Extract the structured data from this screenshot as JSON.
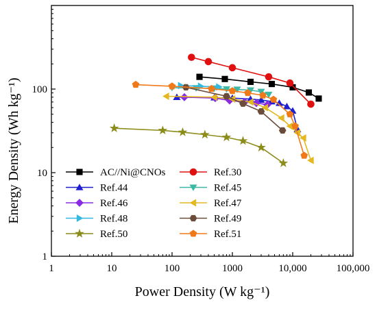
{
  "chart_data": {
    "type": "line",
    "xlabel": "Power Density (W kg⁻¹)",
    "ylabel": "Energy Density (Wh kg⁻¹)",
    "xscale": "log",
    "yscale": "log",
    "xlim": [
      1,
      100000
    ],
    "ylim": [
      1,
      1000
    ],
    "x_ticks": [
      {
        "value": 1,
        "label": "1"
      },
      {
        "value": 10,
        "label": "10"
      },
      {
        "value": 100,
        "label": "100"
      },
      {
        "value": 1000,
        "label": "1000"
      },
      {
        "value": 10000,
        "label": "10,000"
      },
      {
        "value": 100000,
        "label": "100,000"
      }
    ],
    "y_ticks": [
      {
        "value": 1,
        "label": "1"
      },
      {
        "value": 10,
        "label": "10"
      },
      {
        "value": 100,
        "label": "100"
      }
    ],
    "grid": false,
    "legend_position": "lower-left",
    "series": [
      {
        "name": "AC//Ni@CNOs",
        "color": "#000000",
        "marker": "square",
        "x": [
          285,
          750,
          2000,
          4500,
          10000,
          18500,
          27000
        ],
        "y": [
          140,
          132,
          122,
          115,
          105,
          91,
          77
        ]
      },
      {
        "name": "Ref.30",
        "color": "#e01010",
        "marker": "circle",
        "x": [
          210,
          400,
          1000,
          4000,
          9000,
          20000
        ],
        "y": [
          240,
          213,
          180,
          140,
          118,
          66
        ]
      },
      {
        "name": "Ref.44",
        "color": "#1f1fd0",
        "marker": "triangle-up",
        "x": [
          120,
          500,
          1000,
          2000,
          3000,
          4500,
          6000,
          8000,
          10000,
          12000
        ],
        "y": [
          80,
          79,
          78,
          76,
          74,
          71,
          68,
          62,
          55,
          33
        ]
      },
      {
        "name": "Ref.45",
        "color": "#3cb8a4",
        "marker": "triangle-down",
        "x": [
          100,
          250,
          500,
          800,
          1200,
          2000,
          3000,
          4000
        ],
        "y": [
          104,
          103,
          102,
          100,
          99,
          97,
          93,
          86
        ]
      },
      {
        "name": "Ref.46",
        "color": "#8a2be2",
        "marker": "diamond",
        "x": [
          160,
          520,
          900,
          1600,
          2500,
          3800
        ],
        "y": [
          80,
          78,
          73,
          70,
          68,
          65
        ]
      },
      {
        "name": "Ref.47",
        "color": "#e3b820",
        "marker": "triangle-left",
        "x": [
          80,
          500,
          1000,
          2000,
          3500,
          6500,
          9000,
          12000,
          15000,
          20000
        ],
        "y": [
          82,
          80,
          76,
          70,
          60,
          45,
          36,
          30,
          26,
          14
        ]
      },
      {
        "name": "Ref.48",
        "color": "#35b8e0",
        "marker": "triangle-right",
        "x": [
          140,
          300,
          600
        ],
        "y": [
          110,
          108,
          106
        ]
      },
      {
        "name": "Ref.49",
        "color": "#6b4c3b",
        "marker": "hexagon",
        "x": [
          170,
          800,
          1500,
          3000,
          6800
        ],
        "y": [
          105,
          82,
          67,
          54,
          32
        ]
      },
      {
        "name": "Ref.50",
        "color": "#8b8c1a",
        "marker": "star",
        "x": [
          11,
          70,
          150,
          350,
          800,
          1500,
          3000,
          7000
        ],
        "y": [
          34,
          32,
          30.5,
          28.5,
          26.5,
          24,
          20,
          13
        ]
      },
      {
        "name": "Ref.51",
        "color": "#f07a1a",
        "marker": "pentagon",
        "x": [
          25,
          100,
          450,
          1000,
          1800,
          3200,
          4800,
          9000,
          11000,
          15500
        ],
        "y": [
          113,
          108,
          101,
          95,
          90,
          84,
          75,
          50,
          36,
          16
        ]
      }
    ]
  }
}
